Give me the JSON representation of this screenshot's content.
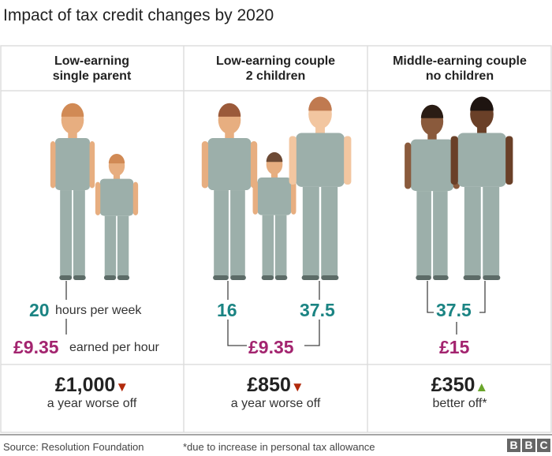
{
  "title": "Impact of tax credit changes by 2020",
  "columns": [
    {
      "header_line1": "Low-earning",
      "header_line2": "single parent",
      "hours": "20",
      "hours_label": "hours per week",
      "rate": "£9.35",
      "rate_label": "earned per hour",
      "amount": "£1,000",
      "direction": "down",
      "result": "a year worse off"
    },
    {
      "header_line1": "Low-earning couple",
      "header_line2": "2 children",
      "hours_a": "16",
      "hours_b": "37.5",
      "rate": "£9.35",
      "amount": "£850",
      "direction": "down",
      "result": "a year worse off"
    },
    {
      "header_line1": "Middle-earning couple",
      "header_line2": "no children",
      "hours": "37.5",
      "rate": "£15",
      "amount": "£350",
      "direction": "up",
      "result": "better off*"
    }
  ],
  "footer": {
    "source": "Source: Resolution Foundation",
    "note": "*due to increase in personal tax allowance",
    "logo": [
      "B",
      "B",
      "C"
    ]
  },
  "colors": {
    "hours": "#1b8483",
    "rate": "#a3246f",
    "down": "#b22a0c",
    "up": "#6aa52b",
    "clothing": "#9cafaa"
  }
}
